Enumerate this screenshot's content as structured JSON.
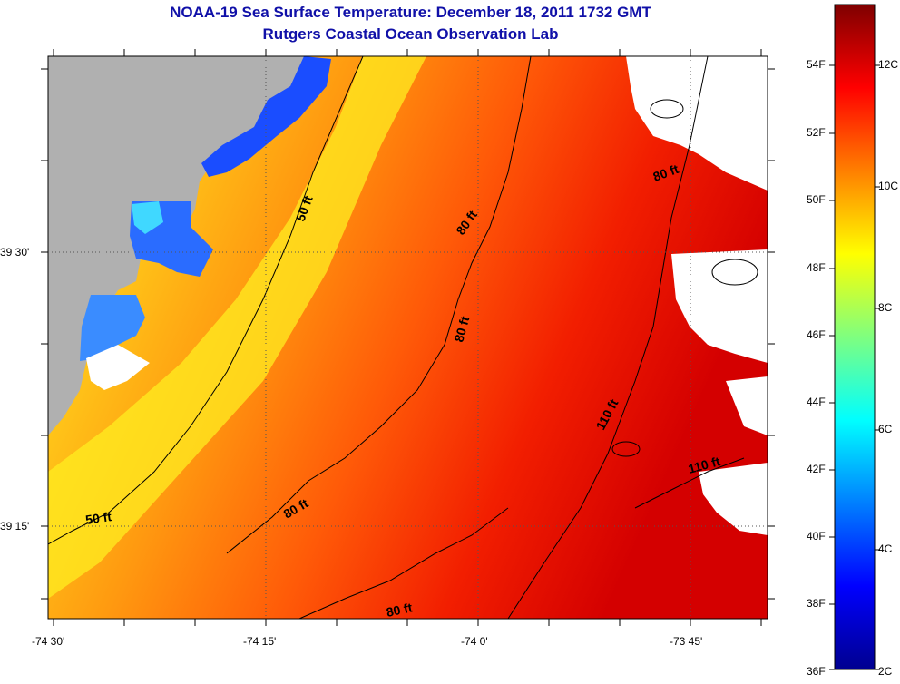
{
  "title": "NOAA-19 Sea Surface Temperature:  December 18, 2011 1732 GMT",
  "subtitle": "Rutgers Coastal Ocean Observation Lab",
  "map": {
    "x_ticks": [
      "-74 30'",
      "-74 15'",
      "-74 0'",
      "-73 45'"
    ],
    "y_ticks": [
      "39 30'",
      "39 15'"
    ],
    "contour_labels": [
      "50 ft",
      "50 ft",
      "80 ft",
      "80 ft",
      "80 ft",
      "80 ft",
      "80 ft",
      "110 ft",
      "110 ft"
    ],
    "colors": {
      "land": "#b0b0b0",
      "no_data": "#ffffff",
      "contour": "#000000",
      "title": "#1010a8"
    }
  },
  "colorbar": {
    "fahrenheit_labels": [
      "54F",
      "52F",
      "50F",
      "48F",
      "46F",
      "44F",
      "42F",
      "40F",
      "38F",
      "36F"
    ],
    "celsius_labels": [
      "12C",
      "10C",
      "8C",
      "6C",
      "4C",
      "2C"
    ],
    "colors": [
      "#00008f",
      "#0000ff",
      "#007fff",
      "#00ffff",
      "#7fff7f",
      "#ffff00",
      "#ff7f00",
      "#ff0000",
      "#7f0000"
    ]
  }
}
